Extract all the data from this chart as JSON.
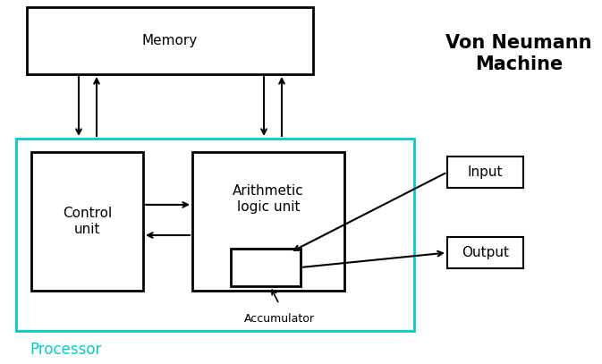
{
  "bg_color": "#ffffff",
  "title": "Von Neumann\nMachine",
  "title_fontsize": 15,
  "processor_label": "Processor",
  "processor_color": "#00cccc",
  "memory_label": "Memory",
  "control_label": "Control\nunit",
  "alu_label": "Arithmetic\nlogic unit",
  "accumulator_label": "Accumulator",
  "input_label": "Input",
  "output_label": "Output",
  "arrow_color": "#000000",
  "label_fontsize": 11,
  "acc_fontsize": 9
}
